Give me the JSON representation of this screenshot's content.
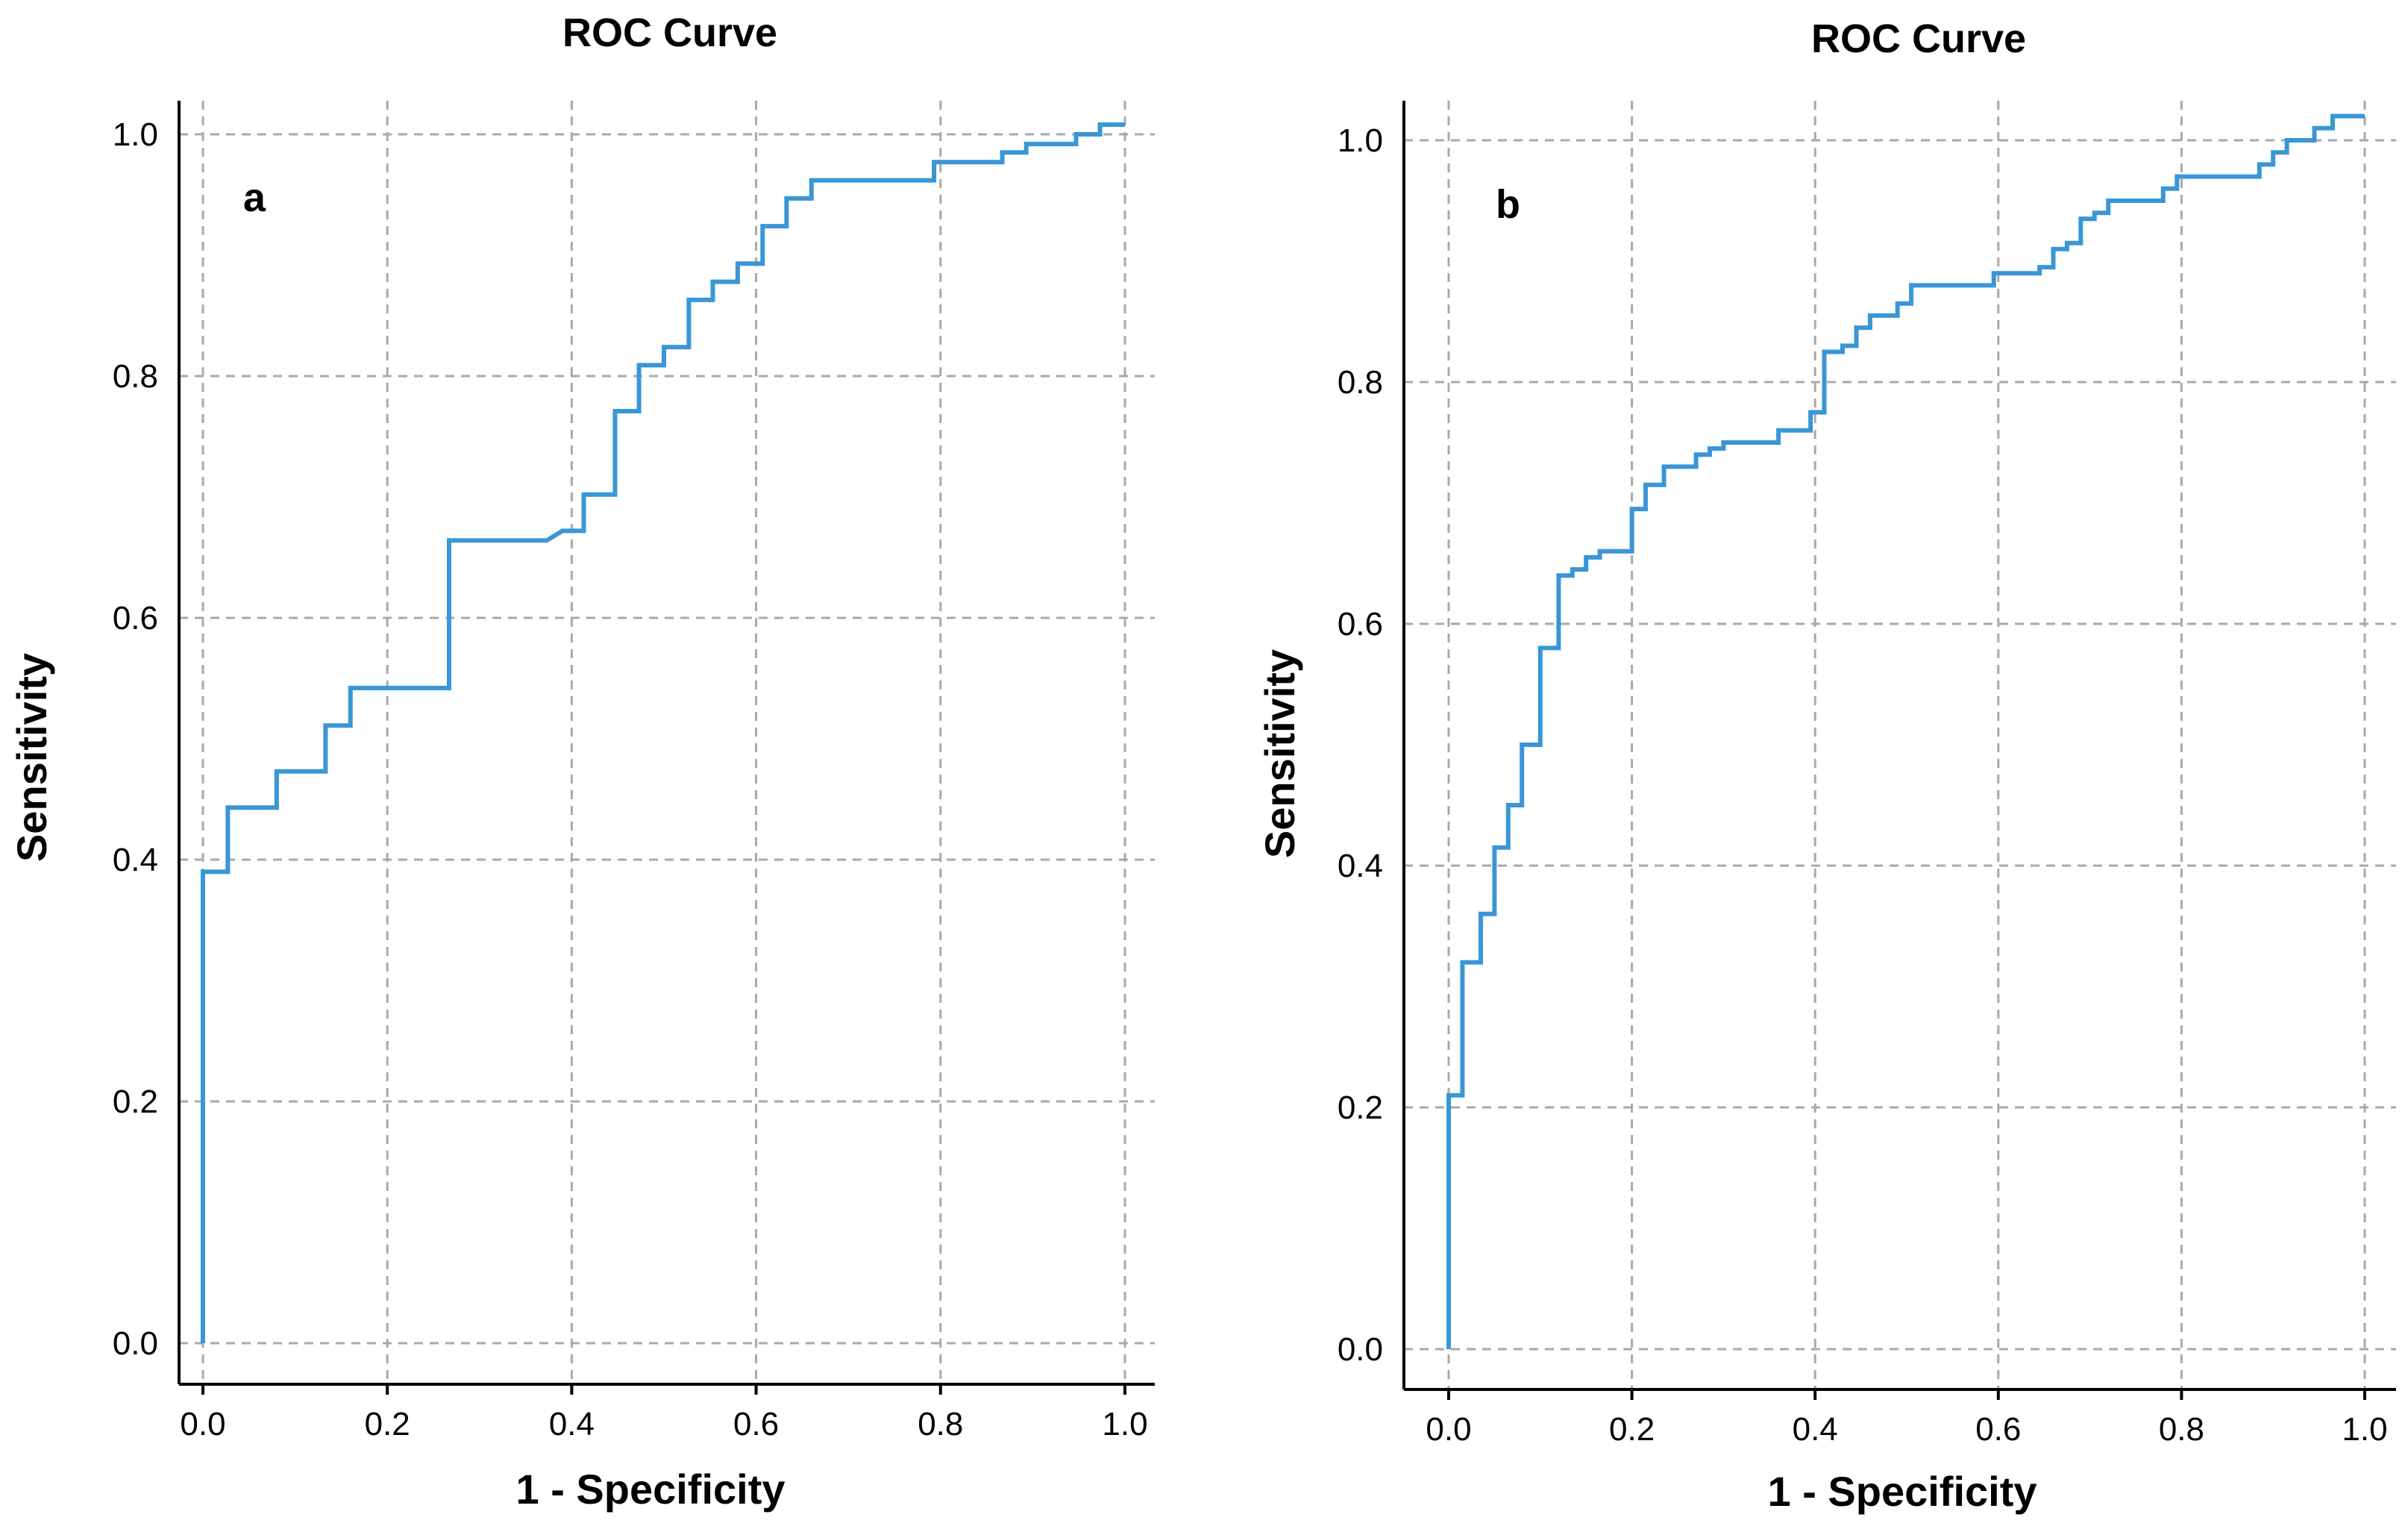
{
  "chart_data": [
    {
      "type": "line",
      "title": "ROC Curve",
      "panel_label": "a",
      "xlabel": "1 - Specificity",
      "ylabel": "Sensitivity",
      "xlim": [
        0,
        1
      ],
      "ylim": [
        0,
        1
      ],
      "xticks": [
        "0.0",
        "0.2",
        "0.4",
        "0.6",
        "0.8",
        "1.0"
      ],
      "yticks": [
        "0.0",
        "0.2",
        "0.4",
        "0.6",
        "0.8",
        "1.0"
      ],
      "grid": true,
      "line_color": "#3a96d6",
      "series": [
        {
          "name": "ROC",
          "points": [
            [
              0,
              0
            ],
            [
              0,
              0.39
            ],
            [
              0.027,
              0.39
            ],
            [
              0.027,
              0.443
            ],
            [
              0.08,
              0.443
            ],
            [
              0.08,
              0.473
            ],
            [
              0.133,
              0.473
            ],
            [
              0.133,
              0.511
            ],
            [
              0.16,
              0.511
            ],
            [
              0.16,
              0.542
            ],
            [
              0.267,
              0.542
            ],
            [
              0.267,
              0.664
            ],
            [
              0.373,
              0.664
            ],
            [
              0.39,
              0.672
            ],
            [
              0.413,
              0.672
            ],
            [
              0.413,
              0.702
            ],
            [
              0.447,
              0.702
            ],
            [
              0.447,
              0.771
            ],
            [
              0.473,
              0.771
            ],
            [
              0.473,
              0.809
            ],
            [
              0.5,
              0.809
            ],
            [
              0.5,
              0.824
            ],
            [
              0.527,
              0.824
            ],
            [
              0.527,
              0.863
            ],
            [
              0.553,
              0.863
            ],
            [
              0.553,
              0.878
            ],
            [
              0.58,
              0.878
            ],
            [
              0.58,
              0.893
            ],
            [
              0.607,
              0.893
            ],
            [
              0.607,
              0.924
            ],
            [
              0.633,
              0.924
            ],
            [
              0.633,
              0.947
            ],
            [
              0.66,
              0.947
            ],
            [
              0.66,
              0.962
            ],
            [
              0.793,
              0.962
            ],
            [
              0.793,
              0.977
            ],
            [
              0.867,
              0.977
            ],
            [
              0.867,
              0.985
            ],
            [
              0.893,
              0.985
            ],
            [
              0.893,
              0.992
            ],
            [
              0.947,
              0.992
            ],
            [
              0.947,
              1.0
            ],
            [
              0.973,
              1.0
            ],
            [
              0.973,
              1.008
            ],
            [
              1.0,
              1.008
            ]
          ]
        }
      ]
    },
    {
      "type": "line",
      "title": "ROC Curve",
      "panel_label": "b",
      "xlabel": "1 - Specificity",
      "ylabel": "Sensitivity",
      "xlim": [
        0,
        1
      ],
      "ylim": [
        0,
        1
      ],
      "xticks": [
        "0.0",
        "0.2",
        "0.4",
        "0.6",
        "0.8",
        "1.0"
      ],
      "yticks": [
        "0.0",
        "0.2",
        "0.4",
        "0.6",
        "0.8",
        "1.0"
      ],
      "grid": true,
      "line_color": "#3a96d6",
      "series": [
        {
          "name": "ROC",
          "points": [
            [
              0,
              0
            ],
            [
              0,
              0.21
            ],
            [
              0.015,
              0.21
            ],
            [
              0.015,
              0.32
            ],
            [
              0.035,
              0.32
            ],
            [
              0.035,
              0.36
            ],
            [
              0.05,
              0.36
            ],
            [
              0.05,
              0.415
            ],
            [
              0.065,
              0.415
            ],
            [
              0.065,
              0.45
            ],
            [
              0.08,
              0.45
            ],
            [
              0.08,
              0.5
            ],
            [
              0.1,
              0.5
            ],
            [
              0.1,
              0.58
            ],
            [
              0.12,
              0.58
            ],
            [
              0.12,
              0.64
            ],
            [
              0.135,
              0.64
            ],
            [
              0.135,
              0.645
            ],
            [
              0.15,
              0.645
            ],
            [
              0.15,
              0.655
            ],
            [
              0.165,
              0.655
            ],
            [
              0.165,
              0.66
            ],
            [
              0.2,
              0.66
            ],
            [
              0.2,
              0.695
            ],
            [
              0.215,
              0.695
            ],
            [
              0.215,
              0.715
            ],
            [
              0.235,
              0.715
            ],
            [
              0.235,
              0.73
            ],
            [
              0.27,
              0.73
            ],
            [
              0.27,
              0.74
            ],
            [
              0.285,
              0.74
            ],
            [
              0.285,
              0.745
            ],
            [
              0.3,
              0.745
            ],
            [
              0.3,
              0.75
            ],
            [
              0.36,
              0.75
            ],
            [
              0.36,
              0.76
            ],
            [
              0.395,
              0.76
            ],
            [
              0.395,
              0.775
            ],
            [
              0.41,
              0.775
            ],
            [
              0.41,
              0.825
            ],
            [
              0.43,
              0.825
            ],
            [
              0.43,
              0.83
            ],
            [
              0.445,
              0.83
            ],
            [
              0.445,
              0.845
            ],
            [
              0.46,
              0.845
            ],
            [
              0.46,
              0.855
            ],
            [
              0.49,
              0.855
            ],
            [
              0.49,
              0.865
            ],
            [
              0.505,
              0.865
            ],
            [
              0.505,
              0.88
            ],
            [
              0.595,
              0.88
            ],
            [
              0.595,
              0.89
            ],
            [
              0.645,
              0.89
            ],
            [
              0.645,
              0.895
            ],
            [
              0.66,
              0.895
            ],
            [
              0.66,
              0.91
            ],
            [
              0.675,
              0.91
            ],
            [
              0.675,
              0.915
            ],
            [
              0.69,
              0.915
            ],
            [
              0.69,
              0.935
            ],
            [
              0.705,
              0.935
            ],
            [
              0.705,
              0.94
            ],
            [
              0.72,
              0.94
            ],
            [
              0.72,
              0.95
            ],
            [
              0.78,
              0.95
            ],
            [
              0.78,
              0.96
            ],
            [
              0.795,
              0.96
            ],
            [
              0.795,
              0.97
            ],
            [
              0.885,
              0.97
            ],
            [
              0.885,
              0.98
            ],
            [
              0.9,
              0.98
            ],
            [
              0.9,
              0.99
            ],
            [
              0.915,
              0.99
            ],
            [
              0.915,
              1.0
            ],
            [
              0.945,
              1.0
            ],
            [
              0.945,
              1.01
            ],
            [
              0.965,
              1.01
            ],
            [
              0.965,
              1.02
            ],
            [
              1.0,
              1.02
            ]
          ]
        }
      ]
    }
  ]
}
